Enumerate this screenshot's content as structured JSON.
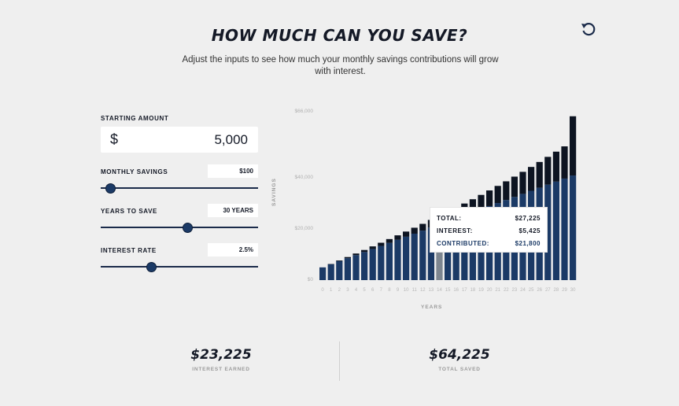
{
  "header": {
    "title": "HOW MUCH CAN YOU SAVE?",
    "subtitle": "Adjust the inputs to see how much your monthly savings contributions will grow with interest."
  },
  "controls": {
    "starting_amount": {
      "label": "STARTING AMOUNT",
      "currency": "$",
      "value": "5,000"
    },
    "monthly_savings": {
      "label": "MONTHLY SAVINGS",
      "value": "$100",
      "slider_fraction": 0.06
    },
    "years_to_save": {
      "label": "YEARS TO SAVE",
      "value": "30 YEARS",
      "slider_fraction": 0.55
    },
    "interest_rate": {
      "label": "INTEREST RATE",
      "value": "2.5%",
      "slider_fraction": 0.32
    }
  },
  "icons": {
    "reset": "reset-icon"
  },
  "colors": {
    "contributed": "#1b3a66",
    "interest": "#0d1421",
    "highlight": "#7d8690",
    "background": "#efefef"
  },
  "tooltip": {
    "total_label": "TOTAL:",
    "total_value": "$27,225",
    "interest_label": "INTEREST:",
    "interest_value": "$5,425",
    "contributed_label": "CONTRIBUTED:",
    "contributed_value": "$21,800"
  },
  "chart_data": {
    "type": "bar",
    "stacked": true,
    "xlabel": "YEARS",
    "ylabel": "SAVINGS",
    "ylim": [
      0,
      66000
    ],
    "yticks": [
      "$0",
      "$20,000",
      "$40,000",
      "$66,000"
    ],
    "ytick_values": [
      0,
      20000,
      40000,
      66000
    ],
    "categories": [
      "0",
      "1",
      "2",
      "3",
      "4",
      "5",
      "6",
      "7",
      "8",
      "9",
      "10",
      "11",
      "12",
      "13",
      "14",
      "15",
      "16",
      "17",
      "18",
      "19",
      "20",
      "21",
      "22",
      "23",
      "24",
      "25",
      "26",
      "27",
      "28",
      "29",
      "30"
    ],
    "highlight_index": 14,
    "series": [
      {
        "name": "CONTRIBUTED",
        "values": [
          5000,
          6200,
          7400,
          8600,
          9800,
          11000,
          12200,
          13400,
          14600,
          15800,
          17000,
          18200,
          19400,
          20600,
          21800,
          23000,
          24200,
          25400,
          26600,
          27800,
          29000,
          30200,
          31400,
          32600,
          33800,
          35000,
          36200,
          37400,
          38600,
          39800,
          41000
        ]
      },
      {
        "name": "INTEREST",
        "values": [
          0,
          130,
          280,
          440,
          620,
          810,
          1020,
          1250,
          1490,
          1750,
          2030,
          2330,
          2650,
          3000,
          5425,
          3760,
          4180,
          4620,
          5100,
          5600,
          6150,
          6720,
          7320,
          7960,
          8640,
          9360,
          10110,
          10910,
          11750,
          12630,
          23225
        ]
      }
    ]
  },
  "summary": {
    "interest_earned_value": "$23,225",
    "interest_earned_label": "INTEREST EARNED",
    "total_saved_value": "$64,225",
    "total_saved_label": "TOTAL SAVED"
  }
}
